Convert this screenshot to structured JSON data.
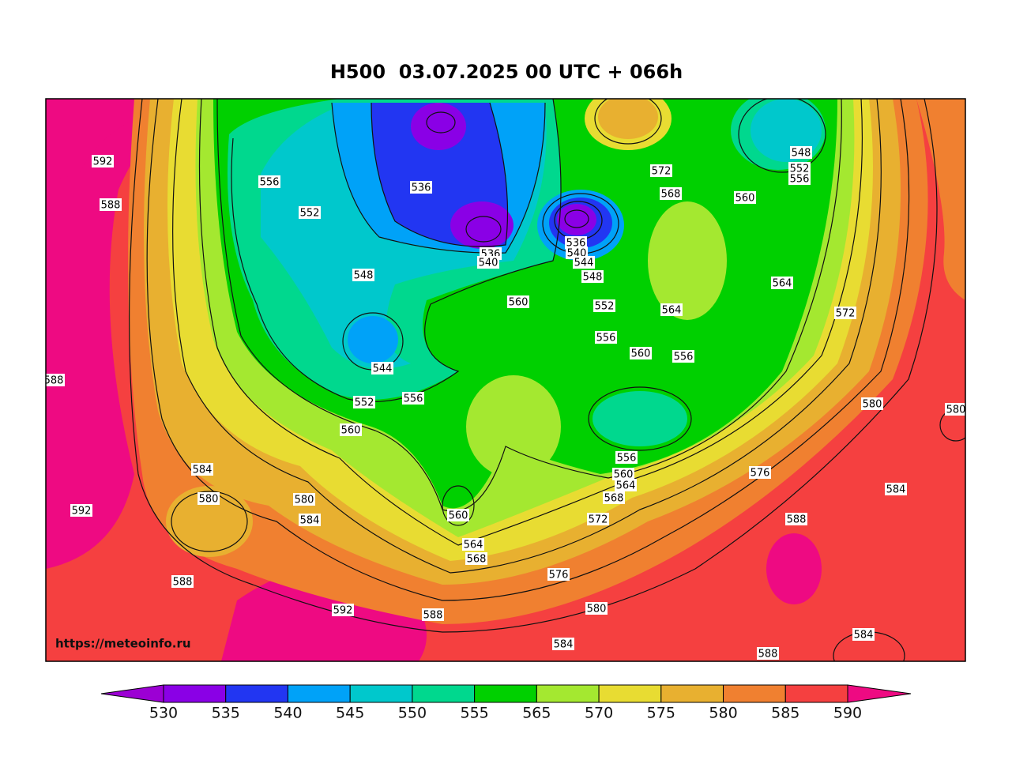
{
  "title": "H500  03.07.2025 00 UTC + 066h",
  "watermark": "https://meteoinfo.ru",
  "contour_labels": [
    592,
    588,
    556,
    552,
    536,
    536,
    540,
    536,
    540,
    544,
    548,
    572,
    568,
    548,
    552,
    556,
    560,
    564,
    572,
    548,
    560,
    552,
    564,
    556,
    560,
    556,
    544,
    552,
    556,
    560,
    588,
    580,
    580,
    584,
    580,
    580,
    584,
    592,
    556,
    560,
    564,
    568,
    576,
    584,
    560,
    572,
    588,
    564,
    568,
    576,
    588,
    592,
    588,
    580,
    584,
    584,
    588
  ],
  "colorbar": {
    "ticks": [
      530,
      535,
      540,
      545,
      550,
      555,
      565,
      570,
      575,
      580,
      585,
      590
    ],
    "colors": [
      "#9c00d4",
      "#8a00e6",
      "#2236f2",
      "#00a2f8",
      "#00c8cc",
      "#00d88e",
      "#00d000",
      "#a4e830",
      "#e8dc32",
      "#e8b030",
      "#f08030",
      "#f54040",
      "#ee0a82"
    ]
  }
}
